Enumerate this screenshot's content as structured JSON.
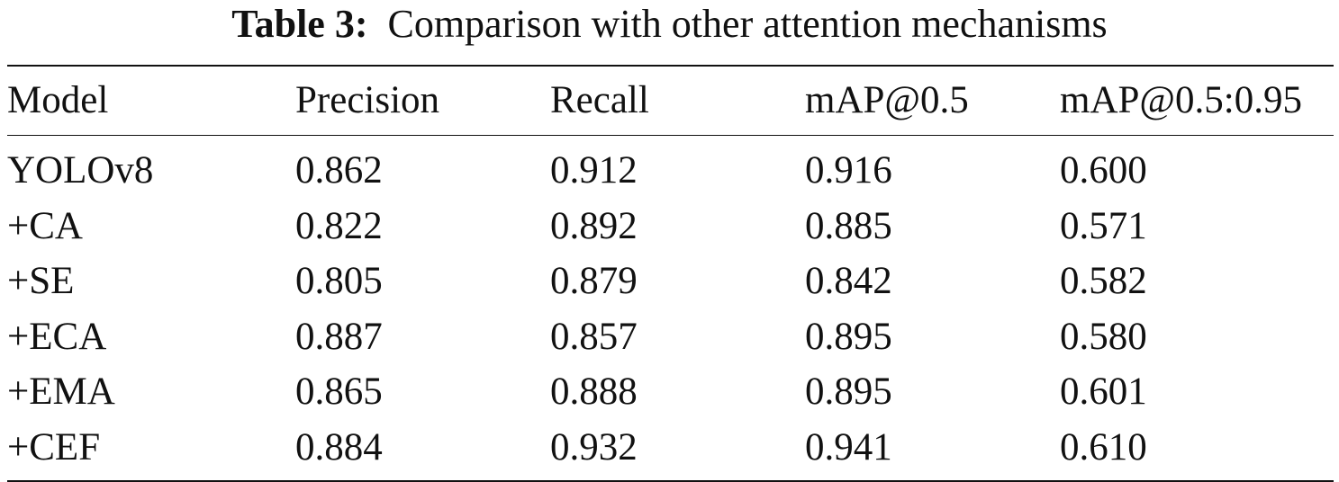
{
  "caption": {
    "label": "Table 3:",
    "text": "Comparison with other attention mechanisms"
  },
  "table": {
    "columns": [
      "Model",
      "Precision",
      "Recall",
      "mAP@0.5",
      "mAP@0.5:0.95"
    ],
    "rows": [
      [
        "YOLOv8",
        "0.862",
        "0.912",
        "0.916",
        "0.600"
      ],
      [
        "+CA",
        "0.822",
        "0.892",
        "0.885",
        "0.571"
      ],
      [
        "+SE",
        "0.805",
        "0.879",
        "0.842",
        "0.582"
      ],
      [
        "+ECA",
        "0.887",
        "0.857",
        "0.895",
        "0.580"
      ],
      [
        "+EMA",
        "0.865",
        "0.888",
        "0.895",
        "0.601"
      ],
      [
        "+CEF",
        "0.884",
        "0.932",
        "0.941",
        "0.610"
      ]
    ]
  }
}
